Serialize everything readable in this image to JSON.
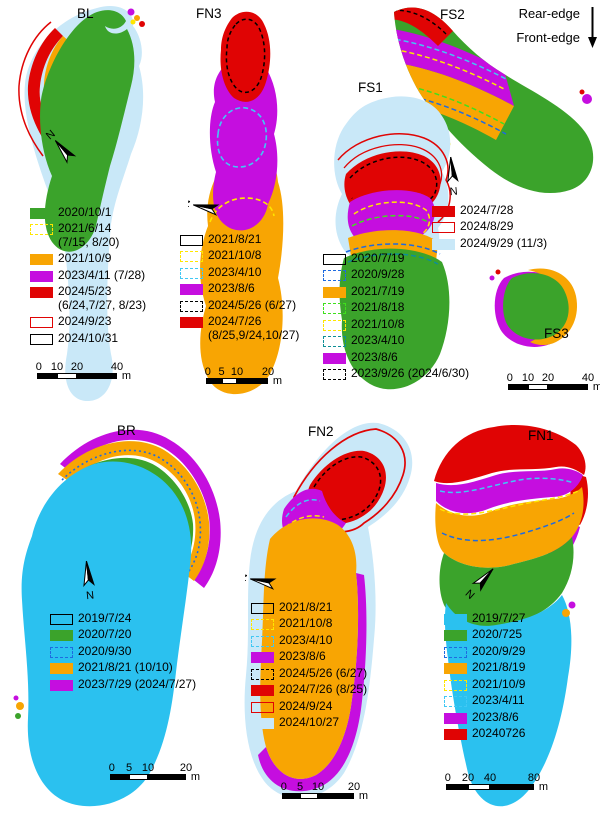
{
  "colors": {
    "green": "#3BA32B",
    "orange": "#F8A503",
    "magenta": "#C50EDF",
    "red": "#E00404",
    "paleblue": "#C9E8F8",
    "cyan": "#2BC1EF",
    "yellow": "#FFE600",
    "blue": "#1F6BE0",
    "lightcyan": "#41C8F4",
    "teal": "#0E8F96",
    "lime": "#3FE01C",
    "black": "#000000"
  },
  "annotations": {
    "rear_edge": "Rear-edge",
    "front_edge": "Front-edge"
  },
  "compass": {
    "n": "N"
  },
  "panels": [
    {
      "id": "bl",
      "title": "BL",
      "legend": [
        {
          "swatch": "solid",
          "color": "green",
          "label": "2020/10/1"
        },
        {
          "swatch": "dashed",
          "color": "yellow",
          "label": "2021/6/14",
          "label2": "(7/15, 8/20)"
        },
        {
          "swatch": "solid",
          "color": "orange",
          "label": "2021/10/9"
        },
        {
          "swatch": "solid",
          "color": "magenta",
          "label": "2023/4/11 (7/28)"
        },
        {
          "swatch": "solid",
          "color": "red",
          "label": "2024/5/23",
          "label2": "(6/24,7/27, 8/23)"
        },
        {
          "swatch": "outline",
          "color": "red",
          "label": "2024/9/23"
        },
        {
          "swatch": "outline",
          "color": "black",
          "label": "2024/10/31"
        }
      ],
      "scalebar": {
        "ticks": [
          "0",
          "10",
          "20",
          "40"
        ],
        "unit": "m"
      }
    },
    {
      "id": "fn3",
      "title": "FN3",
      "legend": [
        {
          "swatch": "outline",
          "color": "black",
          "label": "2021/8/21"
        },
        {
          "swatch": "dashed",
          "color": "yellow",
          "label": "2021/10/8"
        },
        {
          "swatch": "dashed",
          "color": "lightcyan",
          "label": "2023/4/10"
        },
        {
          "swatch": "solid",
          "color": "magenta",
          "label": "2023/8/6"
        },
        {
          "swatch": "dashed",
          "color": "black",
          "label": "2024/5/26 (6/27)"
        },
        {
          "swatch": "solid",
          "color": "red",
          "label": "2024/7/26",
          "label2": "(8/25,9/24,10/27)"
        }
      ],
      "scalebar": {
        "ticks": [
          "0",
          "5",
          "10",
          "20"
        ],
        "unit": "m"
      }
    },
    {
      "id": "fs2",
      "title": "FS2",
      "legend": [
        {
          "swatch": "solid",
          "color": "red",
          "label": "2024/7/28"
        },
        {
          "swatch": "outline",
          "color": "red",
          "label": "2024/8/29"
        },
        {
          "swatch": "solid",
          "color": "paleblue",
          "label": "2024/9/29 (11/3)"
        }
      ],
      "scalebar": {
        "ticks": [
          "0",
          "10",
          "20",
          "40"
        ],
        "unit": "m"
      }
    },
    {
      "id": "fs1",
      "title": "FS1",
      "legend": [
        {
          "swatch": "outline",
          "color": "black",
          "label": "2020/7/19"
        },
        {
          "swatch": "dashed",
          "color": "blue",
          "label": "2020/9/28"
        },
        {
          "swatch": "solid",
          "color": "orange",
          "label": "2021/7/19"
        },
        {
          "swatch": "dashed",
          "color": "lime",
          "label": "2021/8/18"
        },
        {
          "swatch": "dashed",
          "color": "yellow",
          "label": "2021/10/8"
        },
        {
          "swatch": "dashed",
          "color": "teal",
          "label": "2023/4/10"
        },
        {
          "swatch": "solid",
          "color": "magenta",
          "label": "2023/8/6"
        },
        {
          "swatch": "dashed",
          "color": "black",
          "label": "2023/9/26 (2024/6/30)"
        }
      ]
    },
    {
      "id": "fs3",
      "title": "FS3"
    },
    {
      "id": "br",
      "title": "BR",
      "legend": [
        {
          "swatch": "outline",
          "color": "black",
          "label": "2019/7/24"
        },
        {
          "swatch": "solid",
          "color": "green",
          "label": "2020/7/20"
        },
        {
          "swatch": "dashed",
          "color": "blue",
          "label": "2020/9/30"
        },
        {
          "swatch": "solid",
          "color": "orange",
          "label": "2021/8/21 (10/10)"
        },
        {
          "swatch": "solid",
          "color": "magenta",
          "label": "2023/7/29 (2024/7/27)"
        }
      ],
      "scalebar": {
        "ticks": [
          "0",
          "5",
          "10",
          "20"
        ],
        "unit": "m"
      }
    },
    {
      "id": "fn2",
      "title": "FN2",
      "legend": [
        {
          "swatch": "outline",
          "color": "black",
          "label": "2021/8/21"
        },
        {
          "swatch": "dashed",
          "color": "yellow",
          "label": "2021/10/8"
        },
        {
          "swatch": "dashed",
          "color": "lightcyan",
          "label": "2023/4/10"
        },
        {
          "swatch": "solid",
          "color": "magenta",
          "label": "2023/8/6"
        },
        {
          "swatch": "dashed",
          "color": "black",
          "label": "2024/5/26 (6/27)"
        },
        {
          "swatch": "solid",
          "color": "red",
          "label": "2024/7/26 (8/25)"
        },
        {
          "swatch": "outline",
          "color": "red",
          "label": "2024/9/24"
        },
        {
          "swatch": "solid",
          "color": "paleblue",
          "label": "2024/10/27"
        }
      ],
      "scalebar": {
        "ticks": [
          "0",
          "5",
          "10",
          "20"
        ],
        "unit": "m"
      }
    },
    {
      "id": "fn1",
      "title": "FN1",
      "legend": [
        {
          "swatch": "solid",
          "color": "cyan",
          "label": "2019/7/27"
        },
        {
          "swatch": "solid",
          "color": "green",
          "label": "2020/725"
        },
        {
          "swatch": "dashed",
          "color": "blue",
          "label": "2020/9/29"
        },
        {
          "swatch": "solid",
          "color": "orange",
          "label": "2021/8/19"
        },
        {
          "swatch": "dashed",
          "color": "yellow",
          "label": "2021/10/9"
        },
        {
          "swatch": "dashed",
          "color": "lightcyan",
          "label": "2023/4/11"
        },
        {
          "swatch": "solid",
          "color": "magenta",
          "label": "2023/8/6"
        },
        {
          "swatch": "solid",
          "color": "red",
          "label": "20240726"
        }
      ],
      "scalebar": {
        "ticks": [
          "0",
          "20",
          "40",
          "80"
        ],
        "unit": "m"
      }
    }
  ]
}
